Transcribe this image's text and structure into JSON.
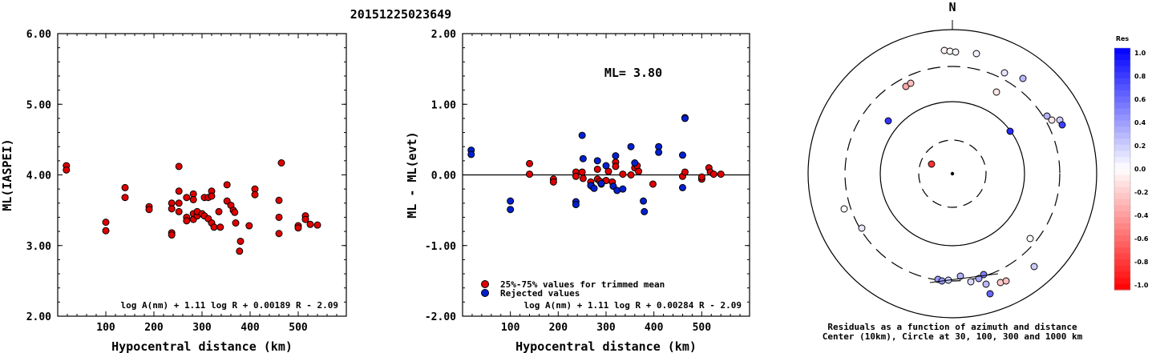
{
  "page_title": "20151225023649",
  "chart_data": [
    {
      "type": "scatter",
      "title": "",
      "xlabel": "Hypocentral distance (km)",
      "ylabel": "ML(IASPEI)",
      "xlim": [
        0,
        600
      ],
      "ylim": [
        2.0,
        6.0
      ],
      "x_ticks": [
        "100",
        "200",
        "300",
        "400",
        "500"
      ],
      "y_ticks": [
        "2.00",
        "3.00",
        "4.00",
        "5.00",
        "6.00"
      ],
      "formula": "log A(nm) + 1.11 log R + 0.00189 R - 2.09",
      "series": [
        {
          "color": "#e00000",
          "points": [
            [
              18,
              4.13
            ],
            [
              18,
              4.07
            ],
            [
              100,
              3.33
            ],
            [
              100,
              3.21
            ],
            [
              140,
              3.82
            ],
            [
              140,
              3.68
            ],
            [
              190,
              3.55
            ],
            [
              190,
              3.51
            ],
            [
              237,
              3.6
            ],
            [
              237,
              3.52
            ],
            [
              237,
              3.18
            ],
            [
              237,
              3.15
            ],
            [
              252,
              4.12
            ],
            [
              252,
              3.77
            ],
            [
              252,
              3.6
            ],
            [
              252,
              3.48
            ],
            [
              268,
              3.68
            ],
            [
              268,
              3.4
            ],
            [
              268,
              3.35
            ],
            [
              282,
              3.73
            ],
            [
              282,
              3.65
            ],
            [
              282,
              3.45
            ],
            [
              282,
              3.37
            ],
            [
              290,
              3.42
            ],
            [
              290,
              3.48
            ],
            [
              300,
              3.45
            ],
            [
              305,
              3.68
            ],
            [
              305,
              3.42
            ],
            [
              313,
              3.68
            ],
            [
              313,
              3.38
            ],
            [
              320,
              3.77
            ],
            [
              320,
              3.7
            ],
            [
              320,
              3.32
            ],
            [
              325,
              3.26
            ],
            [
              335,
              3.48
            ],
            [
              338,
              3.26
            ],
            [
              352,
              3.86
            ],
            [
              352,
              3.63
            ],
            [
              360,
              3.57
            ],
            [
              365,
              3.5
            ],
            [
              368,
              3.47
            ],
            [
              370,
              3.32
            ],
            [
              378,
              2.92
            ],
            [
              380,
              3.06
            ],
            [
              398,
              3.28
            ],
            [
              410,
              3.8
            ],
            [
              410,
              3.72
            ],
            [
              460,
              3.64
            ],
            [
              460,
              3.4
            ],
            [
              460,
              3.17
            ],
            [
              465,
              4.17
            ],
            [
              500,
              3.28
            ],
            [
              500,
              3.25
            ],
            [
              515,
              3.42
            ],
            [
              515,
              3.37
            ],
            [
              525,
              3.3
            ],
            [
              540,
              3.29
            ]
          ]
        }
      ]
    },
    {
      "type": "scatter",
      "title": "",
      "xlabel": "Hypocentral distance (km)",
      "ylabel": "ML - ML(evt)",
      "xlim": [
        0,
        600
      ],
      "ylim": [
        -2.0,
        2.0
      ],
      "x_ticks": [
        "100",
        "200",
        "300",
        "400",
        "500"
      ],
      "y_ticks": [
        "-2.00",
        "-1.00",
        "0.00",
        "1.00",
        "2.00"
      ],
      "annotation": "ML= 3.80",
      "legend": [
        "25%-75% values for trimmed mean",
        "Rejected values"
      ],
      "legend_position": "bottom-left",
      "formula": "log A(nm) + 1.11 log R + 0.00284 R - 2.09",
      "series": [
        {
          "name": "25%-75% values for trimmed mean",
          "color": "#e00000",
          "points": [
            [
              140,
              0.16
            ],
            [
              140,
              0.01
            ],
            [
              190,
              -0.06
            ],
            [
              190,
              -0.1
            ],
            [
              237,
              0.04
            ],
            [
              237,
              -0.02
            ],
            [
              250,
              0.04
            ],
            [
              252,
              -0.05
            ],
            [
              268,
              -0.1
            ],
            [
              270,
              -0.16
            ],
            [
              282,
              -0.06
            ],
            [
              282,
              0.08
            ],
            [
              287,
              -0.09
            ],
            [
              290,
              -0.13
            ],
            [
              300,
              -0.08
            ],
            [
              305,
              0.05
            ],
            [
              313,
              -0.1
            ],
            [
              320,
              0.18
            ],
            [
              320,
              0.12
            ],
            [
              335,
              0.01
            ],
            [
              352,
              0.0
            ],
            [
              360,
              0.1
            ],
            [
              365,
              0.13
            ],
            [
              368,
              0.05
            ],
            [
              398,
              -0.13
            ],
            [
              460,
              -0.02
            ],
            [
              465,
              0.04
            ],
            [
              500,
              -0.06
            ],
            [
              500,
              -0.03
            ],
            [
              515,
              0.1
            ],
            [
              518,
              0.04
            ],
            [
              525,
              0.01
            ],
            [
              540,
              0.01
            ]
          ]
        },
        {
          "name": "Rejected values",
          "color": "#0020d0",
          "points": [
            [
              18,
              0.35
            ],
            [
              18,
              0.29
            ],
            [
              100,
              -0.37
            ],
            [
              100,
              -0.49
            ],
            [
              237,
              -0.38
            ],
            [
              237,
              -0.42
            ],
            [
              250,
              0.56
            ],
            [
              252,
              0.23
            ],
            [
              268,
              -0.15
            ],
            [
              275,
              -0.19
            ],
            [
              282,
              0.2
            ],
            [
              290,
              -0.12
            ],
            [
              300,
              0.13
            ],
            [
              315,
              -0.16
            ],
            [
              320,
              0.27
            ],
            [
              323,
              -0.22
            ],
            [
              335,
              -0.2
            ],
            [
              352,
              0.4
            ],
            [
              360,
              0.17
            ],
            [
              378,
              -0.37
            ],
            [
              380,
              -0.52
            ],
            [
              410,
              0.4
            ],
            [
              410,
              0.32
            ],
            [
              460,
              0.28
            ],
            [
              460,
              -0.18
            ],
            [
              465,
              0.81
            ],
            [
              465,
              0.8
            ]
          ]
        }
      ]
    },
    {
      "type": "polar-scatter",
      "north_label": "N",
      "caption_line1": "Residuals as a function of azimuth and distance",
      "caption_line2": "Center (10km), Circle at 30, 100, 300 and 1000 km",
      "colorbar_title": "Res",
      "colorbar_ticks": [
        "1.0",
        "0.8",
        "0.6",
        "0.4",
        "0.2",
        "0.0",
        "-0.2",
        "-0.4",
        "-0.6",
        "-0.8",
        "-1.0"
      ],
      "points_residual": [
        [
          -0.05,
          0.8
        ],
        [
          0.0,
          0.8
        ],
        [
          0.05,
          0.8
        ],
        [
          -0.35,
          0.75
        ],
        [
          -0.25,
          0.7
        ],
        [
          -0.1,
          0.7
        ],
        [
          0.05,
          0.4
        ],
        [
          0.1,
          0.38
        ],
        [
          0.28,
          0.55
        ],
        [
          0.3,
          0.5
        ],
        [
          -0.1,
          0.3
        ],
        [
          0.2,
          0.35
        ],
        [
          0.75,
          0.55
        ],
        [
          0.8,
          0.5
        ],
        [
          0.85,
          0.5
        ],
        [
          -0.8,
          0.3
        ],
        [
          0.0,
          0.0
        ],
        [
          0.1,
          0.1
        ],
        [
          0.0,
          -0.3
        ],
        [
          0.2,
          -0.1
        ],
        [
          0.4,
          0.05
        ],
        [
          0.4,
          0.2
        ],
        [
          0.2,
          -0.25
        ],
        [
          0.3,
          -0.2
        ],
        [
          0.15,
          -0.15
        ],
        [
          0.35,
          -0.05
        ],
        [
          0.28,
          -0.18
        ],
        [
          -0.2,
          -0.25
        ],
        [
          -0.25,
          -0.2
        ],
        [
          0.6,
          -0.1
        ],
        [
          0.5,
          0.2
        ]
      ]
    }
  ]
}
